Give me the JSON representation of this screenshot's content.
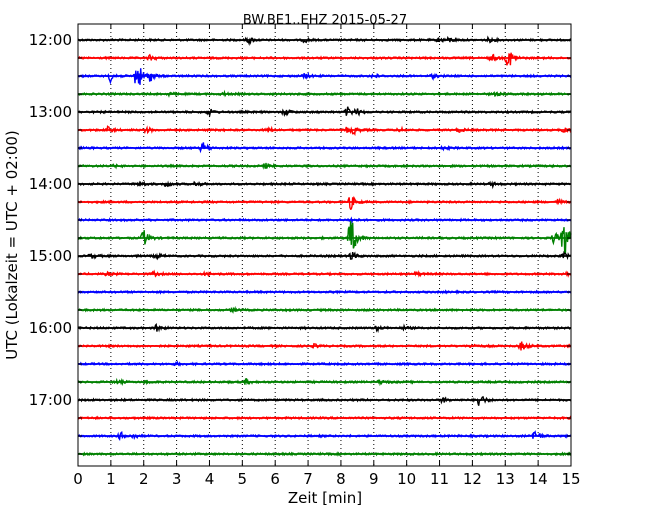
{
  "chart_data": {
    "type": "line",
    "title": "BW.BE1..EHZ 2015-05-27",
    "xlabel": "Zeit  [min]",
    "ylabel": "UTC (Lokalzeit = UTC + 02:00)",
    "xlim": [
      0,
      15
    ],
    "x_ticks": [
      "0",
      "1",
      "2",
      "3",
      "4",
      "5",
      "6",
      "7",
      "8",
      "9",
      "10",
      "11",
      "12",
      "13",
      "14",
      "15"
    ],
    "grid": {
      "vertical_dotted": true
    },
    "hour_labels": [
      {
        "label": "12:00",
        "row": 0
      },
      {
        "label": "13:00",
        "row": 4
      },
      {
        "label": "14:00",
        "row": 8
      },
      {
        "label": "15:00",
        "row": 12
      },
      {
        "label": "16:00",
        "row": 16
      },
      {
        "label": "17:00",
        "row": 20
      }
    ],
    "row_interval_min": 15,
    "row_colors": [
      "#000000",
      "#ff0000",
      "#0000ff",
      "#008000"
    ],
    "rows": [
      {
        "start": "12:00",
        "events": [
          {
            "t": 5.2,
            "a": 0.6
          },
          {
            "t": 6.9,
            "a": 0.4
          },
          {
            "t": 11.0,
            "a": 0.5
          },
          {
            "t": 11.3,
            "a": 0.4
          },
          {
            "t": 12.5,
            "a": 0.4
          }
        ]
      },
      {
        "start": "12:15",
        "events": [
          {
            "t": 2.2,
            "a": 0.5
          },
          {
            "t": 13.1,
            "a": 2.2
          },
          {
            "t": 12.6,
            "a": 0.7
          }
        ]
      },
      {
        "start": "12:30",
        "events": [
          {
            "t": 1.0,
            "a": 1.2
          },
          {
            "t": 1.8,
            "a": 3.2
          },
          {
            "t": 2.2,
            "a": 1.0
          },
          {
            "t": 6.9,
            "a": 0.5
          },
          {
            "t": 9.0,
            "a": 0.5
          },
          {
            "t": 10.8,
            "a": 0.4
          }
        ]
      },
      {
        "start": "12:45",
        "events": [
          {
            "t": 2.8,
            "a": 0.3
          },
          {
            "t": 4.4,
            "a": 0.3
          },
          {
            "t": 12.7,
            "a": 0.3
          }
        ]
      },
      {
        "start": "13:00",
        "events": [
          {
            "t": 4.0,
            "a": 0.6
          },
          {
            "t": 6.3,
            "a": 0.6
          },
          {
            "t": 8.2,
            "a": 0.9
          },
          {
            "t": 8.5,
            "a": 0.5
          }
        ]
      },
      {
        "start": "13:15",
        "events": [
          {
            "t": 0.9,
            "a": 0.6
          },
          {
            "t": 2.1,
            "a": 0.5
          },
          {
            "t": 5.8,
            "a": 0.4
          },
          {
            "t": 8.2,
            "a": 0.6
          },
          {
            "t": 8.4,
            "a": 0.6
          },
          {
            "t": 9.8,
            "a": 0.4
          },
          {
            "t": 11.6,
            "a": 0.4
          },
          {
            "t": 14.8,
            "a": 0.5
          }
        ]
      },
      {
        "start": "13:30",
        "events": [
          {
            "t": 3.8,
            "a": 1.1
          },
          {
            "t": 11.1,
            "a": 0.2
          }
        ]
      },
      {
        "start": "13:45",
        "events": [
          {
            "t": 5.7,
            "a": 0.5
          },
          {
            "t": 1.1,
            "a": 0.2
          }
        ]
      },
      {
        "start": "14:00",
        "events": [
          {
            "t": 1.9,
            "a": 0.5
          },
          {
            "t": 2.7,
            "a": 0.5
          },
          {
            "t": 3.6,
            "a": 0.5
          },
          {
            "t": 12.6,
            "a": 0.4
          }
        ]
      },
      {
        "start": "14:15",
        "events": [
          {
            "t": 8.3,
            "a": 1.4
          },
          {
            "t": 14.6,
            "a": 0.5
          }
        ]
      },
      {
        "start": "14:30",
        "events": [
          {
            "t": 8.3,
            "a": 0.4
          }
        ]
      },
      {
        "start": "14:45",
        "events": [
          {
            "t": 2.0,
            "a": 1.6
          },
          {
            "t": 8.3,
            "a": 4.5
          },
          {
            "t": 14.8,
            "a": 4.0
          },
          {
            "t": 14.5,
            "a": 1.2
          }
        ]
      },
      {
        "start": "15:00",
        "events": [
          {
            "t": 0.4,
            "a": 0.4
          },
          {
            "t": 2.4,
            "a": 0.5
          },
          {
            "t": 8.3,
            "a": 1.0
          },
          {
            "t": 14.8,
            "a": 0.5
          }
        ]
      },
      {
        "start": "15:15",
        "events": [
          {
            "t": 0.9,
            "a": 0.3
          },
          {
            "t": 2.3,
            "a": 0.4
          },
          {
            "t": 3.9,
            "a": 0.3
          },
          {
            "t": 10.3,
            "a": 0.3
          },
          {
            "t": 14.8,
            "a": 0.4
          }
        ]
      },
      {
        "start": "15:30",
        "events": []
      },
      {
        "start": "15:45",
        "events": [
          {
            "t": 4.7,
            "a": 0.4
          }
        ]
      },
      {
        "start": "16:00",
        "events": [
          {
            "t": 2.4,
            "a": 0.6
          },
          {
            "t": 9.1,
            "a": 0.4
          },
          {
            "t": 9.9,
            "a": 0.3
          }
        ]
      },
      {
        "start": "16:15",
        "events": [
          {
            "t": 7.2,
            "a": 0.3
          },
          {
            "t": 12.0,
            "a": 0.4
          },
          {
            "t": 13.5,
            "a": 0.9
          }
        ]
      },
      {
        "start": "16:30",
        "events": [
          {
            "t": 3.0,
            "a": 0.2
          }
        ]
      },
      {
        "start": "16:45",
        "events": [
          {
            "t": 1.2,
            "a": 0.3
          },
          {
            "t": 2.1,
            "a": 0.3
          },
          {
            "t": 5.1,
            "a": 0.5
          },
          {
            "t": 9.2,
            "a": 0.4
          }
        ]
      },
      {
        "start": "17:00",
        "events": [
          {
            "t": 11.1,
            "a": 0.5
          },
          {
            "t": 12.2,
            "a": 1.5
          }
        ]
      },
      {
        "start": "17:15",
        "events": []
      },
      {
        "start": "17:30",
        "events": [
          {
            "t": 1.3,
            "a": 0.7
          },
          {
            "t": 1.7,
            "a": 0.4
          },
          {
            "t": 13.9,
            "a": 1.3
          }
        ]
      },
      {
        "start": "17:45",
        "events": []
      }
    ]
  }
}
